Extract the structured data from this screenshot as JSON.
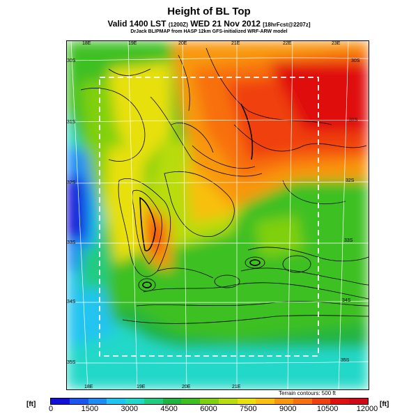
{
  "title": "Height of BL Top",
  "subtitle_main": "Valid 1400 LST",
  "subtitle_small1": "(1200Z)",
  "subtitle_date": "WED 21 Nov 2012",
  "subtitle_small2": "[18hrFcst@2207z]",
  "credit": "DrJack BLIPMAP from HASP 12km GFS-initialized WRF-ARW model",
  "terrain_note": "Terrain contours: 500 ft",
  "unit_left": "[ft]",
  "unit_right": "[ft]",
  "top_lon_labels": [
    "18E",
    "19E",
    "20E",
    "21E",
    "22E",
    "23E"
  ],
  "bottom_lon_labels": [
    "18E",
    "19E",
    "20E",
    "21E"
  ],
  "left_lat_labels": [
    "30S",
    "31S",
    "32S",
    "33S",
    "34S",
    "35S"
  ],
  "right_lat_labels": [
    "30S",
    "31S",
    "32S",
    "33S",
    "34S",
    "35S"
  ],
  "colorbar": {
    "colors": [
      "#1010d8",
      "#1a55f0",
      "#1d8cf5",
      "#20c4f0",
      "#22d8c8",
      "#22cc80",
      "#20b440",
      "#3ec020",
      "#80d010",
      "#b8dc10",
      "#e8e010",
      "#f8c010",
      "#f89810",
      "#f87010",
      "#f04010",
      "#e01010",
      "#d00818"
    ],
    "ticks": [
      "0",
      "1500",
      "3000",
      "4500",
      "6000",
      "7500",
      "9000",
      "10500",
      "12000"
    ]
  }
}
